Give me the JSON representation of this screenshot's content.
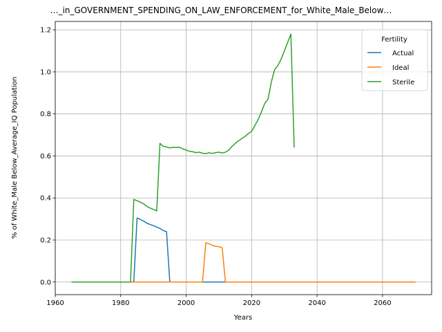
{
  "chart_data": {
    "type": "line",
    "title": "…_in_GOVERNMENT_SPENDING_ON_LAW_ENFORCEMENT_for_White_Male_Below…",
    "xlabel": "Years",
    "ylabel": "% of White_Male Below_Average_IQ Population",
    "xlim": [
      1960,
      2075
    ],
    "ylim": [
      -0.06,
      1.24
    ],
    "x_ticks": [
      1960,
      1980,
      2000,
      2020,
      2040,
      2060
    ],
    "x_tick_labels": [
      "1960",
      "1980",
      "2000",
      "2020",
      "2040",
      "2060"
    ],
    "y_ticks": [
      0.0,
      0.2,
      0.4,
      0.6,
      0.8,
      1.0,
      1.2
    ],
    "y_tick_labels": [
      "0.0",
      "0.2",
      "0.4",
      "0.6",
      "0.8",
      "1.0",
      "1.2"
    ],
    "grid": true,
    "legend": {
      "title": "Fertility",
      "placement": "top-right"
    },
    "series": [
      {
        "name": "Actual",
        "color": "#1f77b4",
        "points": [
          [
            1965,
            0
          ],
          [
            1984,
            0
          ],
          [
            1985,
            0.305
          ],
          [
            1986,
            0.298
          ],
          [
            1987,
            0.29
          ],
          [
            1988,
            0.28
          ],
          [
            1989,
            0.274
          ],
          [
            1990,
            0.268
          ],
          [
            1991,
            0.262
          ],
          [
            1992,
            0.255
          ],
          [
            1993,
            0.245
          ],
          [
            1994,
            0.24
          ],
          [
            1995,
            0
          ],
          [
            2000,
            0
          ],
          [
            2010,
            0
          ],
          [
            2020,
            0
          ],
          [
            2030,
            0
          ],
          [
            2040,
            0
          ],
          [
            2050,
            0
          ],
          [
            2060,
            0
          ],
          [
            2070,
            0
          ]
        ]
      },
      {
        "name": "Ideal",
        "color": "#ff7f0e",
        "points": [
          [
            1965,
            0
          ],
          [
            2005,
            0
          ],
          [
            2006,
            0.187
          ],
          [
            2007,
            0.182
          ],
          [
            2008,
            0.175
          ],
          [
            2009,
            0.17
          ],
          [
            2010,
            0.168
          ],
          [
            2011,
            0.163
          ],
          [
            2012,
            0
          ],
          [
            2020,
            0
          ],
          [
            2030,
            0
          ],
          [
            2040,
            0
          ],
          [
            2050,
            0
          ],
          [
            2060,
            0
          ],
          [
            2070,
            0
          ]
        ]
      },
      {
        "name": "Sterile",
        "color": "#2ca02c",
        "points": [
          [
            1965,
            0
          ],
          [
            1983,
            0
          ],
          [
            1984,
            0.393
          ],
          [
            1985,
            0.387
          ],
          [
            1986,
            0.38
          ],
          [
            1987,
            0.372
          ],
          [
            1988,
            0.36
          ],
          [
            1989,
            0.352
          ],
          [
            1990,
            0.346
          ],
          [
            1991,
            0.338
          ],
          [
            1992,
            0.66
          ],
          [
            1993,
            0.645
          ],
          [
            1994,
            0.643
          ],
          [
            1995,
            0.638
          ],
          [
            1996,
            0.641
          ],
          [
            1997,
            0.64
          ],
          [
            1998,
            0.641
          ],
          [
            1999,
            0.633
          ],
          [
            2000,
            0.628
          ],
          [
            2001,
            0.622
          ],
          [
            2002,
            0.62
          ],
          [
            2003,
            0.616
          ],
          [
            2004,
            0.618
          ],
          [
            2005,
            0.613
          ],
          [
            2006,
            0.611
          ],
          [
            2007,
            0.615
          ],
          [
            2008,
            0.612
          ],
          [
            2009,
            0.616
          ],
          [
            2010,
            0.618
          ],
          [
            2011,
            0.614
          ],
          [
            2012,
            0.618
          ],
          [
            2013,
            0.628
          ],
          [
            2014,
            0.645
          ],
          [
            2015,
            0.66
          ],
          [
            2016,
            0.672
          ],
          [
            2017,
            0.683
          ],
          [
            2018,
            0.693
          ],
          [
            2019,
            0.707
          ],
          [
            2020,
            0.717
          ],
          [
            2021,
            0.745
          ],
          [
            2022,
            0.773
          ],
          [
            2023,
            0.81
          ],
          [
            2024,
            0.85
          ],
          [
            2025,
            0.87
          ],
          [
            2026,
            0.95
          ],
          [
            2027,
            1.01
          ],
          [
            2028,
            1.03
          ],
          [
            2029,
            1.06
          ],
          [
            2030,
            1.1
          ],
          [
            2031,
            1.14
          ],
          [
            2032,
            1.18
          ],
          [
            2033,
            0.64
          ]
        ]
      }
    ]
  }
}
